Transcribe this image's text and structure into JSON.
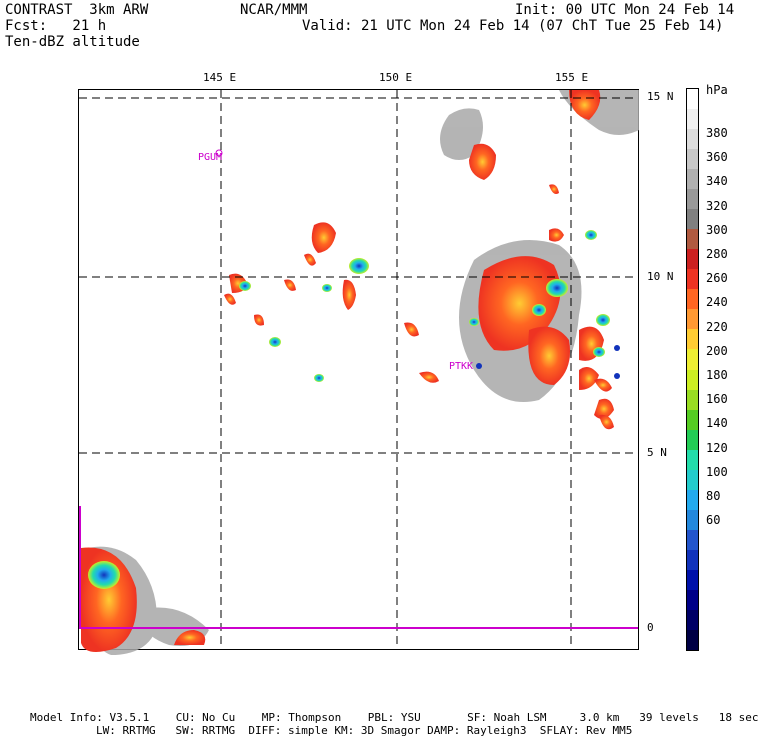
{
  "header": {
    "model_name": "CONTRAST  3km ARW",
    "center": "NCAR/MMM",
    "init": "Init: 00 UTC Mon 24 Feb 14",
    "fcst_label": "Fcst:   21 h",
    "valid": "Valid: 21 UTC Mon 24 Feb 14 (07 ChT Tue 25 Feb 14)",
    "field": "Ten-dBZ altitude"
  },
  "map": {
    "lon_labels": [
      "145 E",
      "150 E",
      "155 E"
    ],
    "lat_labels": [
      "15 N",
      "10 N",
      "5 N",
      "0"
    ],
    "stations": [
      "PGUM",
      "PTKK"
    ],
    "colors": {
      "equator_line": "#cc00cc",
      "station_text": "#cc00cc",
      "grid_line": "#000000"
    }
  },
  "colorbar": {
    "unit": "hPa",
    "labels": [
      "380",
      "360",
      "340",
      "320",
      "300",
      "280",
      "260",
      "240",
      "220",
      "200",
      "180",
      "160",
      "140",
      "120",
      "100",
      "80",
      "60"
    ],
    "colors": [
      "#ffffff",
      "#f0f0f0",
      "#dddddd",
      "#c8c8c8",
      "#b0b0b0",
      "#999999",
      "#808080",
      "#b05a40",
      "#cc2020",
      "#ee3322",
      "#ff6622",
      "#ff9933",
      "#ffcc33",
      "#eeee33",
      "#ccee22",
      "#99dd22",
      "#55cc22",
      "#22cc55",
      "#22ddaa",
      "#22cccc",
      "#22aaee",
      "#2288dd",
      "#2255cc",
      "#1133bb",
      "#0011aa",
      "#000088",
      "#000066",
      "#000044"
    ]
  },
  "footer": {
    "line1": "Model Info: V3.5.1    CU: No Cu    MP: Thompson    PBL: YSU       SF: Noah LSM     3.0 km   39 levels   18 sec",
    "line2": "LW: RRTMG   SW: RRTMG  DIFF: simple KM: 3D Smagor DAMP: Rayleigh3  SFLAY: Rev MM5"
  }
}
